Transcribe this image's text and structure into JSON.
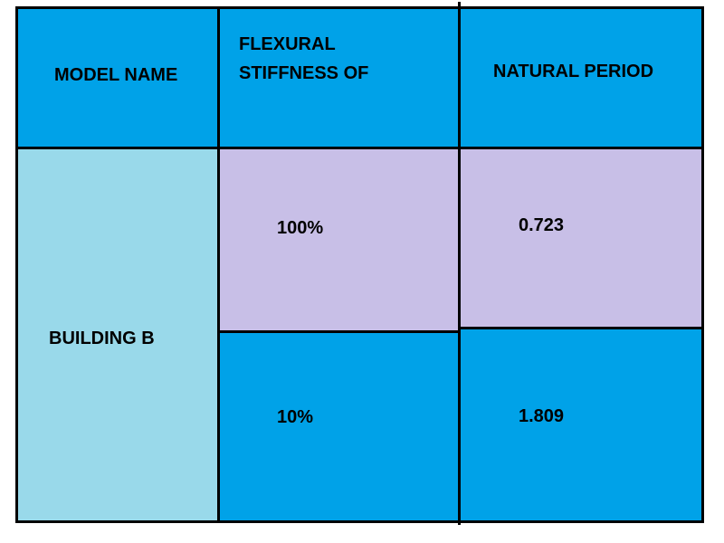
{
  "table": {
    "headers": {
      "model_name": "MODEL NAME",
      "flexural_line1": "FLEXURAL",
      "flexural_line2": "STIFFNESS OF",
      "natural_period": "NATURAL PERIOD"
    },
    "model": "BUILDING B",
    "rows": [
      {
        "stiffness": "100%",
        "period": "0.723"
      },
      {
        "stiffness": "10%",
        "period": "1.809"
      }
    ]
  },
  "colors": {
    "header_fill": "#00a2e8",
    "model_fill": "#99d9ea",
    "row1_fill": "#c8bfe7",
    "row2_fill": "#00a2e8",
    "border": "#000000"
  }
}
